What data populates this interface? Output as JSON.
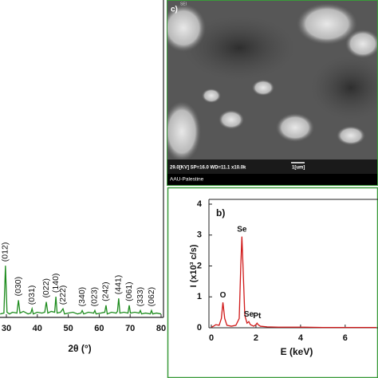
{
  "chart_data": [
    {
      "type": "line",
      "x_label": "2θ (°)",
      "xlim": [
        28,
        80
      ],
      "xticks": [
        30,
        40,
        50,
        60,
        70,
        80
      ],
      "ylim": [
        0,
        100
      ],
      "series": [
        {
          "color": "#1e8c1e",
          "x": [
            28,
            29.2,
            29.7,
            30.2,
            31,
            32,
            33.4,
            33.9,
            34.4,
            35.5,
            37,
            37.9,
            38.3,
            38.7,
            40,
            41.5,
            42.4,
            42.9,
            43.4,
            44.5,
            45.6,
            46,
            46.4,
            47.5,
            48.3,
            48.8,
            50,
            51.5,
            53,
            54.1,
            54.5,
            55,
            56.5,
            58.2,
            58.6,
            59,
            60.5,
            61.8,
            62.2,
            62.6,
            64,
            65.5,
            65.9,
            66.3,
            66.7,
            68,
            69.3,
            69.7,
            70.1,
            71.5,
            72.9,
            73.3,
            73.7,
            75,
            76.5,
            76.9,
            77.3,
            78.5,
            80
          ],
          "values": [
            4,
            5,
            60,
            6,
            4,
            6,
            5,
            20,
            5,
            7,
            4,
            5,
            10,
            4,
            6,
            5,
            6,
            18,
            5,
            7,
            6,
            24,
            5,
            6,
            10,
            4,
            5,
            6,
            4,
            5,
            8,
            4,
            6,
            5,
            8,
            4,
            5,
            6,
            14,
            4,
            6,
            5,
            7,
            22,
            5,
            6,
            5,
            14,
            5,
            6,
            5,
            8,
            4,
            5,
            4,
            8,
            4,
            5,
            4
          ]
        }
      ],
      "annotations": [
        {
          "text": "(012)",
          "x": 29.7
        },
        {
          "text": "(030)",
          "x": 33.9
        },
        {
          "text": "(031)",
          "x": 38.3
        },
        {
          "text": "(022)",
          "x": 42.9
        },
        {
          "text": "(140)",
          "x": 46
        },
        {
          "text": "(222)",
          "x": 48.3
        },
        {
          "text": "(340)",
          "x": 54.5
        },
        {
          "text": "(023)",
          "x": 58.6
        },
        {
          "text": "(242)",
          "x": 62.2
        },
        {
          "text": "(441)",
          "x": 66.3
        },
        {
          "text": "(061)",
          "x": 69.7
        },
        {
          "text": "(333)",
          "x": 73.3
        },
        {
          "text": "(062)",
          "x": 76.9
        }
      ]
    },
    {
      "type": "line",
      "panel_label": "b)",
      "x_label": "E (keV)",
      "y_label": "I (x10³ c/s)",
      "xlim": [
        0,
        7.4
      ],
      "xticks": [
        0,
        2,
        4,
        6
      ],
      "ylim": [
        0,
        4
      ],
      "yticks": [
        0,
        1,
        2,
        3,
        4
      ],
      "series": [
        {
          "color": "#d01818",
          "x": [
            0,
            0.1,
            0.2,
            0.35,
            0.45,
            0.52,
            0.6,
            0.7,
            0.9,
            1.1,
            1.25,
            1.32,
            1.37,
            1.42,
            1.5,
            1.6,
            1.68,
            1.75,
            1.9,
            2.0,
            2.05,
            2.1,
            2.2,
            2.5,
            3,
            4,
            5,
            6,
            7,
            7.4
          ],
          "values": [
            0.02,
            0.05,
            0.1,
            0.08,
            0.3,
            0.82,
            0.3,
            0.08,
            0.05,
            0.08,
            0.3,
            2.0,
            2.95,
            2.0,
            0.4,
            0.15,
            0.2,
            0.1,
            0.05,
            0.1,
            0.15,
            0.1,
            0.05,
            0.03,
            0.02,
            0.02,
            0.01,
            0.01,
            0.01,
            0.01
          ]
        }
      ],
      "annotations": [
        {
          "text": "Se",
          "x": 1.37
        },
        {
          "text": "O",
          "x": 0.52
        },
        {
          "text": "Se",
          "x": 1.68
        },
        {
          "text": "Pt",
          "x": 2.05
        }
      ]
    }
  ],
  "sem_image": {
    "label": "c)",
    "header": "SEI",
    "info": "29.0[KV]  SP=16.0  WD=11.1  x10.0k",
    "scale": "1[um]",
    "caption": "AAU-Palestine"
  }
}
